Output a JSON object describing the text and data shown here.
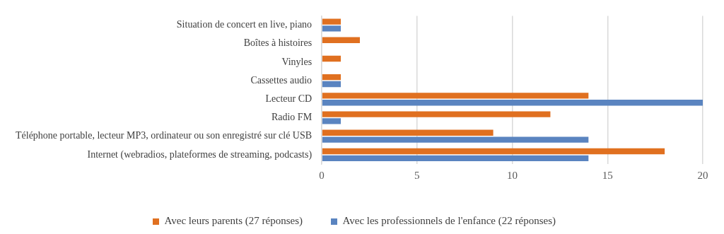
{
  "chart_data": {
    "type": "bar",
    "orientation": "horizontal",
    "categories": [
      "Situation de concert en live, piano",
      "Boîtes à histoires",
      "Vinyles",
      "Cassettes audio",
      "Lecteur CD",
      "Radio FM",
      "Téléphone portable, lecteur MP3, ordinateur ou son enregistré sur clé USB",
      "Internet (webradios, plateformes de streaming, podcasts)"
    ],
    "series": [
      {
        "name": "Avec leurs parents (27 réponses)",
        "color": "#e07020",
        "values": [
          1,
          2,
          1,
          1,
          14,
          12,
          9,
          18
        ]
      },
      {
        "name": "Avec les professionnels de l'enfance (22 réponses)",
        "color": "#5a84c0",
        "values": [
          1,
          0,
          0,
          1,
          20,
          1,
          14,
          14
        ]
      }
    ],
    "xlim": [
      0,
      20
    ],
    "xticks": [
      0,
      5,
      10,
      15,
      20
    ],
    "grid": "x",
    "legend": "bottom"
  }
}
